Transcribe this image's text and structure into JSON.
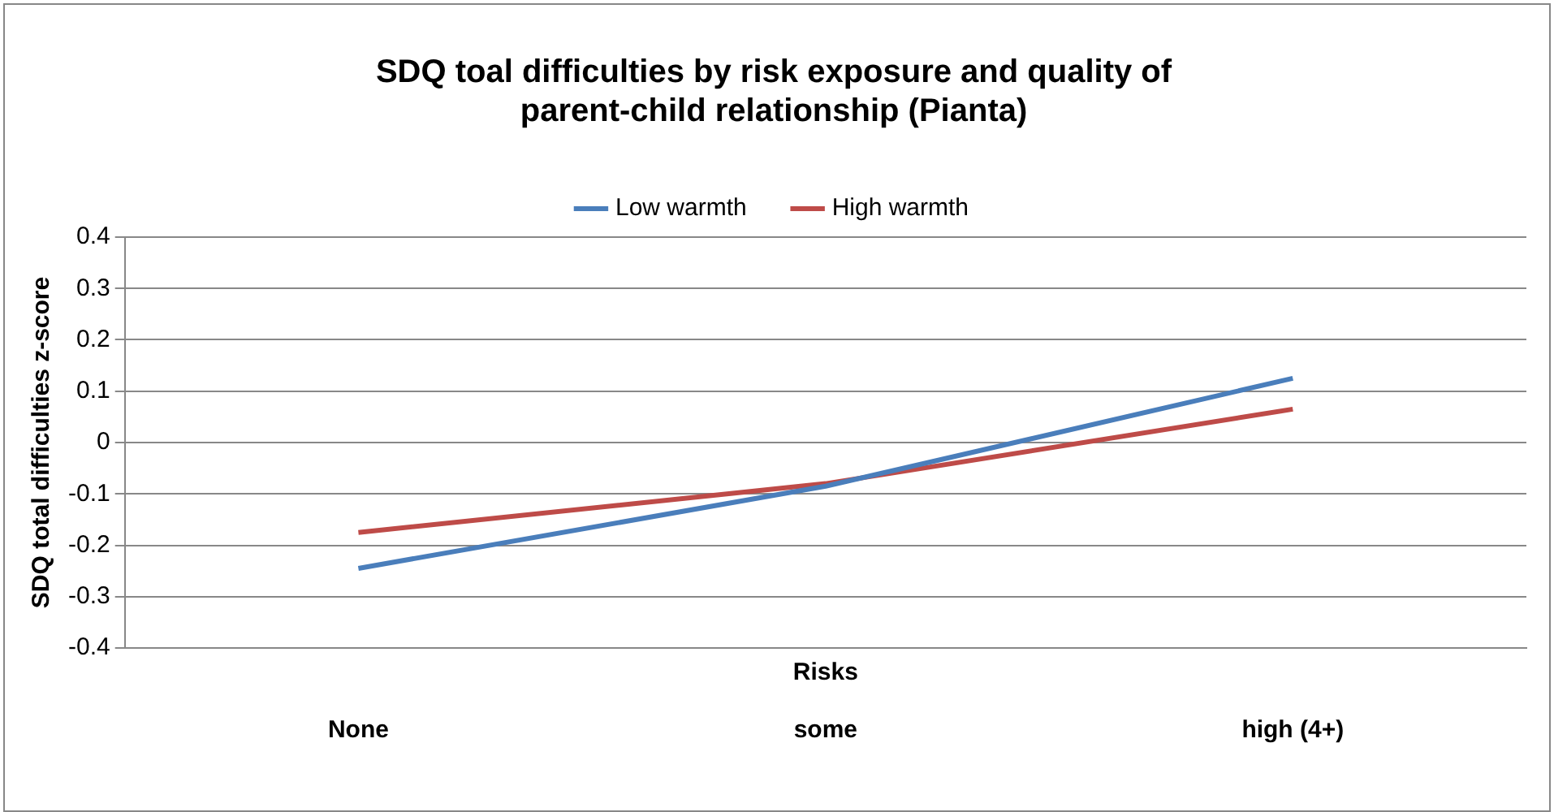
{
  "chart_data": {
    "type": "line",
    "title": "SDQ toal difficulties by risk exposure and quality of parent-child relationship (Pianta)",
    "xlabel": "Risks",
    "ylabel": "SDQ total difficulties z-score",
    "categories": [
      "None",
      "some",
      "high (4+)"
    ],
    "series": [
      {
        "name": "Low warmth",
        "color": "#4a7ebb",
        "values": [
          -0.245,
          -0.085,
          0.125
        ]
      },
      {
        "name": "High warmth",
        "color": "#be4b48",
        "values": [
          -0.175,
          -0.08,
          0.065
        ]
      }
    ],
    "ylim": [
      -0.4,
      0.4
    ],
    "yticks": [
      -0.4,
      -0.3,
      -0.2,
      -0.1,
      0,
      0.1,
      0.2,
      0.3,
      0.4
    ],
    "grid": "y",
    "legend": "top",
    "marker": "none",
    "line_style": "solid"
  }
}
